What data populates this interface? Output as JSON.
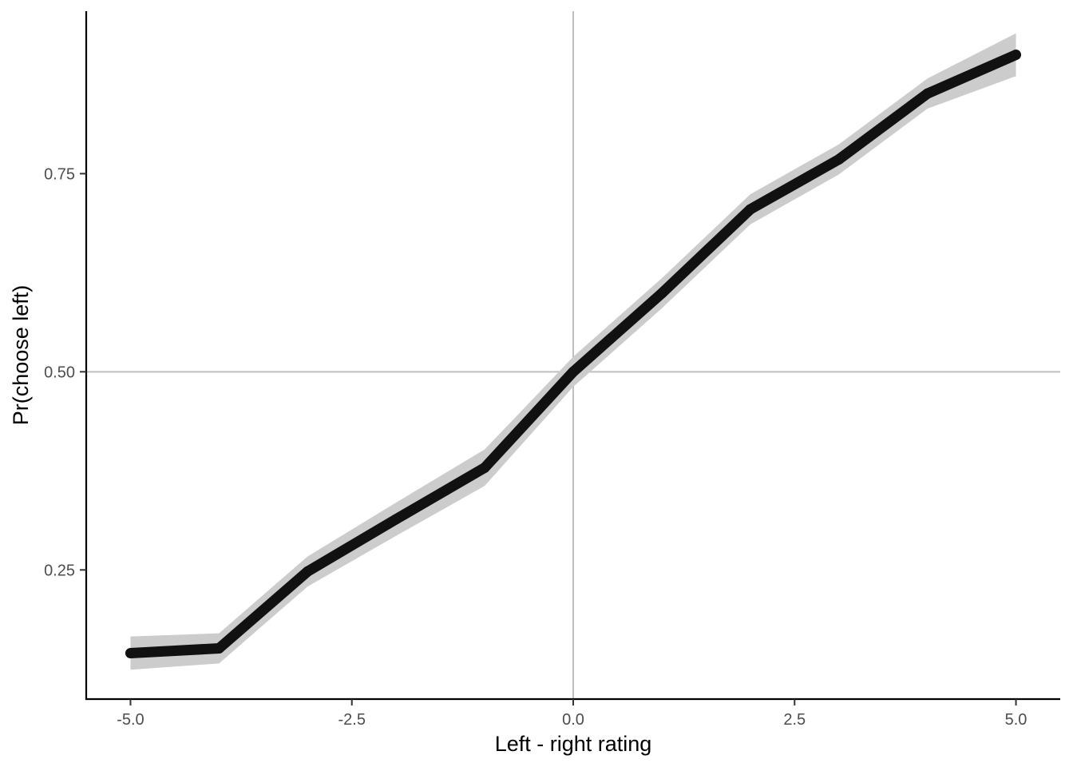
{
  "chart_data": {
    "type": "line",
    "title": "",
    "xlabel": "Left - right rating",
    "ylabel": "Pr(choose left)",
    "xlim": [
      -5.5,
      5.5
    ],
    "ylim": [
      0.087,
      0.955
    ],
    "x_ticks": [
      -5.0,
      -2.5,
      0.0,
      2.5,
      5.0
    ],
    "x_tick_labels": [
      "-5.0",
      "-2.5",
      "0.0",
      "2.5",
      "5.0"
    ],
    "y_ticks": [
      0.25,
      0.5,
      0.75
    ],
    "y_tick_labels": [
      "0.25",
      "0.50",
      "0.75"
    ],
    "reference_lines": {
      "x": 0.0,
      "y": 0.5,
      "color": "#bfbfbf"
    },
    "grid": false,
    "legend": "none",
    "series": [
      {
        "x": [
          -5,
          -4,
          -3,
          -2,
          -1,
          0,
          1,
          2,
          3,
          4,
          5
        ],
        "y": [
          0.145,
          0.151,
          0.248,
          0.314,
          0.379,
          0.5,
          0.599,
          0.705,
          0.768,
          0.851,
          0.9
        ],
        "ci_lower": [
          0.124,
          0.132,
          0.229,
          0.293,
          0.356,
          0.481,
          0.58,
          0.686,
          0.749,
          0.832,
          0.873
        ],
        "ci_upper": [
          0.166,
          0.17,
          0.267,
          0.335,
          0.402,
          0.519,
          0.618,
          0.724,
          0.787,
          0.87,
          0.927
        ],
        "color": "#111111",
        "ribbon_color": "#cccccc"
      }
    ]
  }
}
